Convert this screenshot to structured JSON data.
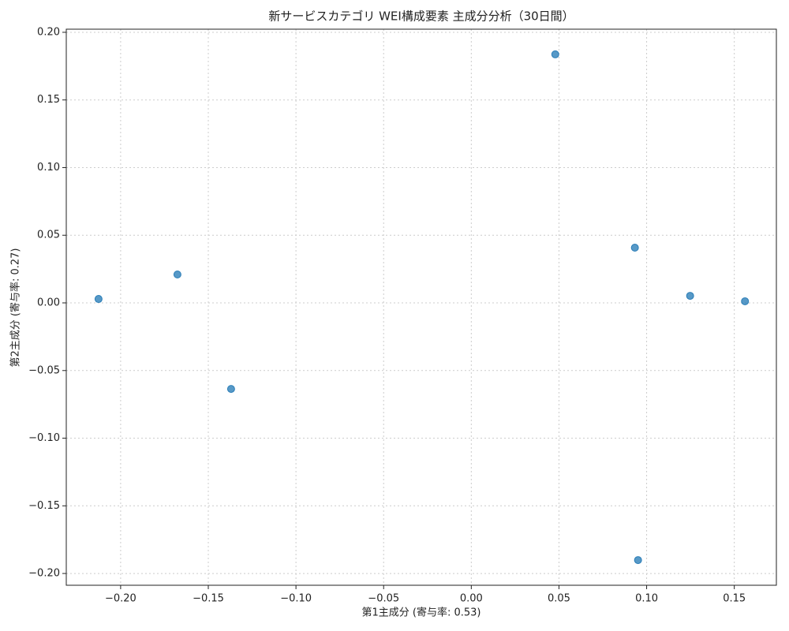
{
  "chart_data": {
    "type": "scatter",
    "title": "新サービスカテゴリ WEI構成要素 主成分分析（30日間）",
    "xlabel": "第1主成分 (寄与率: 0.53)",
    "ylabel": "第2主成分 (寄与率: 0.27)",
    "x": [
      -0.2126,
      -0.1676,
      -0.137,
      0.0479,
      0.0933,
      0.1248,
      0.1561,
      0.0951
    ],
    "values": [
      0.0029,
      0.021,
      -0.0636,
      0.1837,
      0.0408,
      0.0052,
      0.0012,
      -0.1901
    ],
    "color": "#1f77b4",
    "xlim": [
      -0.231,
      0.174
    ],
    "ylim": [
      -0.2087,
      0.2023
    ],
    "xticks": [
      {
        "value": -0.2,
        "label": "−0.20"
      },
      {
        "value": -0.15,
        "label": "−0.15"
      },
      {
        "value": -0.1,
        "label": "−0.10"
      },
      {
        "value": -0.05,
        "label": "−0.05"
      },
      {
        "value": 0,
        "label": "0.00"
      },
      {
        "value": 0.05,
        "label": "0.05"
      },
      {
        "value": 0.1,
        "label": "0.10"
      },
      {
        "value": 0.15,
        "label": "0.15"
      }
    ],
    "yticks": [
      {
        "value": -0.2,
        "label": "−0.20"
      },
      {
        "value": -0.15,
        "label": "−0.15"
      },
      {
        "value": -0.1,
        "label": "−0.10"
      },
      {
        "value": -0.05,
        "label": "−0.05"
      },
      {
        "value": 0,
        "label": "0.00"
      },
      {
        "value": 0.05,
        "label": "0.05"
      },
      {
        "value": 0.1,
        "label": "0.10"
      },
      {
        "value": 0.15,
        "label": "0.15"
      },
      {
        "value": 0.2,
        "label": "0.20"
      }
    ],
    "grid": true
  }
}
